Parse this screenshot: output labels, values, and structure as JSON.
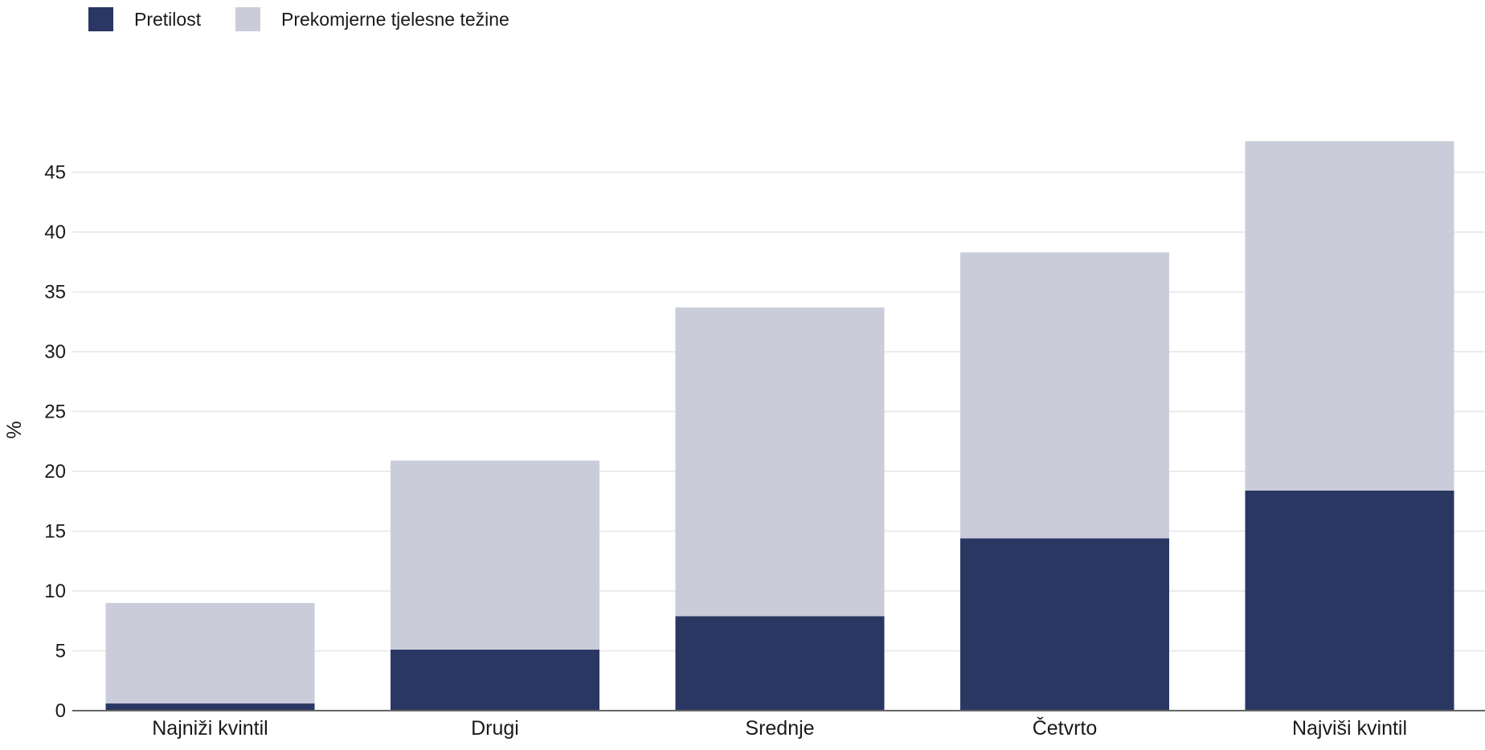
{
  "chart_data": {
    "type": "bar",
    "stacked": true,
    "categories": [
      "Najniži kvintil",
      "Drugi",
      "Srednje",
      "Četvrto",
      "Najviši kvintil"
    ],
    "series": [
      {
        "name": "Pretilost",
        "color": "#2b3763",
        "values": [
          0.6,
          5.1,
          7.9,
          14.4,
          18.4
        ]
      },
      {
        "name": "Prekomjerne tjelesne težine",
        "color": "#cacdd9",
        "values": [
          8.4,
          15.8,
          25.8,
          23.9,
          29.2
        ]
      }
    ],
    "title": "",
    "xlabel": "",
    "ylabel": "%",
    "ylim": [
      0,
      48
    ],
    "yticks": [
      0,
      5,
      10,
      15,
      20,
      25,
      30,
      35,
      40,
      45
    ],
    "grid": true,
    "legend_position": "top-left"
  }
}
